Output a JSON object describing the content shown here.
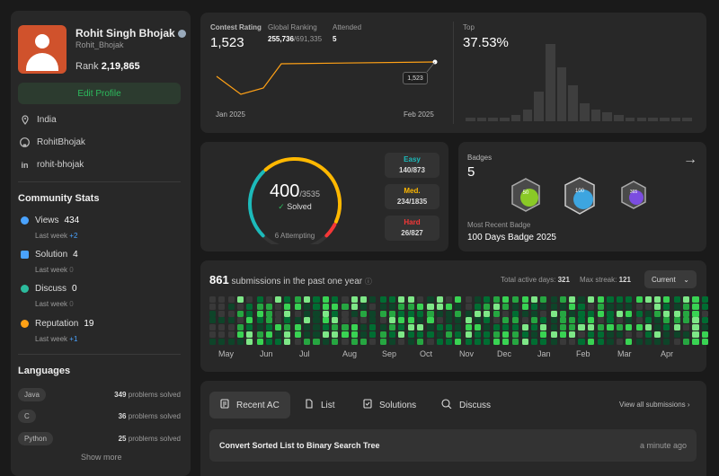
{
  "profile": {
    "name": "Rohit Singh Bhojak",
    "username": "Rohit_Bhojak",
    "rank_label": "Rank",
    "rank_value": "2,19,865",
    "edit_label": "Edit Profile",
    "location": "India",
    "github": "RohitBhojak",
    "linkedin": "rohit-bhojak"
  },
  "community": {
    "title": "Community Stats",
    "items": [
      {
        "label": "Views",
        "value": "434",
        "sub": "Last week",
        "delta": "+2",
        "color": "#4aa3ff"
      },
      {
        "label": "Solution",
        "value": "4",
        "sub": "Last week",
        "delta": "0",
        "color": "#4aa3ff"
      },
      {
        "label": "Discuss",
        "value": "0",
        "sub": "Last week",
        "delta": "0",
        "color": "#2cbb9d"
      },
      {
        "label": "Reputation",
        "value": "19",
        "sub": "Last week",
        "delta": "+1",
        "color": "#ffa116"
      }
    ]
  },
  "languages": {
    "title": "Languages",
    "items": [
      {
        "name": "Java",
        "count": "349",
        "suffix": "problems solved"
      },
      {
        "name": "C",
        "count": "36",
        "suffix": "problems solved"
      },
      {
        "name": "Python",
        "count": "25",
        "suffix": "problems solved"
      }
    ],
    "show_more": "Show more"
  },
  "contest": {
    "rating_label": "Contest Rating",
    "rating": "1,523",
    "global_label": "Global Ranking",
    "global_rank": "255,736",
    "global_total": "/691,335",
    "attended_label": "Attended",
    "attended": "5",
    "x_start": "Jan 2025",
    "x_end": "Feb 2025",
    "tooltip": "1,523",
    "top_label": "Top",
    "top_value": "37.53%",
    "histogram": [
      1,
      1,
      1,
      1,
      2,
      4,
      10,
      26,
      18,
      12,
      6,
      4,
      3,
      2,
      1,
      1,
      1,
      1,
      1,
      1
    ]
  },
  "solved": {
    "count": "400",
    "total": "/3535",
    "label": "Solved",
    "attempting": "6 Attempting",
    "easy_label": "Easy",
    "easy": "140/873",
    "med_label": "Med.",
    "med": "234/1835",
    "hard_label": "Hard",
    "hard": "26/827",
    "easy_color": "#1cbaba",
    "med_color": "#ffb800",
    "hard_color": "#f63737",
    "easy_frac": 0.35,
    "med_frac": 0.585,
    "hard_frac": 0.065
  },
  "badges": {
    "label": "Badges",
    "count": "5",
    "recent_label": "Most Recent Badge",
    "recent": "100 Days Badge 2025",
    "badge1_text": "50",
    "badge2_text": "100",
    "badge3_text": "365"
  },
  "activity": {
    "count": "861",
    "label": "submissions in the past one year",
    "active_label": "Total active days:",
    "active": "321",
    "streak_label": "Max streak:",
    "streak": "121",
    "select": "Current",
    "months": [
      "May",
      "Jun",
      "Jul",
      "Aug",
      "Sep",
      "Oct",
      "Nov",
      "Dec",
      "Jan",
      "Feb",
      "Mar",
      "Apr"
    ]
  },
  "tabs": {
    "recent": "Recent AC",
    "list": "List",
    "solutions": "Solutions",
    "discuss": "Discuss",
    "view_all": "View all submissions"
  },
  "submission": {
    "title": "Convert Sorted List to Binary Search Tree",
    "time": "a minute ago"
  }
}
